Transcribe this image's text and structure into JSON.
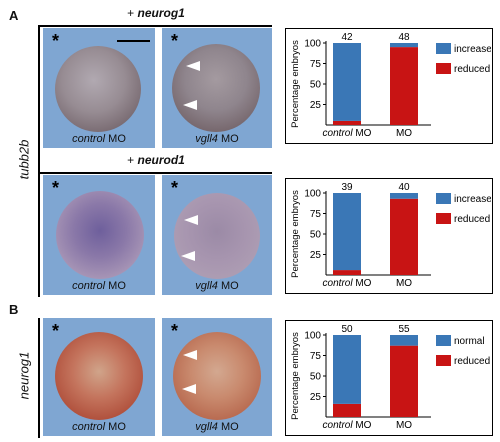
{
  "panels": {
    "a_letter": "A",
    "b_letter": "B"
  },
  "groups": {
    "top": {
      "prefix": "+ ",
      "gene": "neurog1"
    },
    "mid": {
      "prefix": "+ ",
      "gene": "neurod1"
    }
  },
  "row_labels": {
    "a": "tubb2b",
    "b": "neurog1"
  },
  "photos": {
    "star": "*",
    "control_label_italic": "control",
    "control_label_rest": " MO",
    "vgll4_label_italic": "vgll4",
    "vgll4_label_rest": " MO"
  },
  "colors": {
    "blue": "#3a77b6",
    "red": "#c81414",
    "photo_bg": "#7fa6d2"
  },
  "chart_data": [
    {
      "type": "bar",
      "stacked": true,
      "ylabel": "Percentage embryos",
      "yticks": [
        25,
        50,
        75,
        100
      ],
      "ylim": [
        0,
        100
      ],
      "categories": [
        {
          "italic": "control",
          "rest": " MO"
        },
        {
          "italic": "",
          "rest": "MO"
        }
      ],
      "counts": [
        "42",
        "48"
      ],
      "series": [
        {
          "name": "increased",
          "color": "#3a77b6",
          "values": [
            95,
            5
          ]
        },
        {
          "name": "reduced",
          "color": "#c81414",
          "values": [
            5,
            95
          ]
        }
      ]
    },
    {
      "type": "bar",
      "stacked": true,
      "ylabel": "Percentage embryos",
      "yticks": [
        25,
        50,
        75,
        100
      ],
      "ylim": [
        0,
        100
      ],
      "categories": [
        {
          "italic": "control",
          "rest": " MO"
        },
        {
          "italic": "",
          "rest": "MO"
        }
      ],
      "counts": [
        "39",
        "40"
      ],
      "series": [
        {
          "name": "increased",
          "color": "#3a77b6",
          "values": [
            94,
            7
          ]
        },
        {
          "name": "reduced",
          "color": "#c81414",
          "values": [
            6,
            93
          ]
        }
      ]
    },
    {
      "type": "bar",
      "stacked": true,
      "ylabel": "Percentage embryos",
      "yticks": [
        25,
        50,
        75,
        100
      ],
      "ylim": [
        0,
        100
      ],
      "categories": [
        {
          "italic": "control",
          "rest": " MO"
        },
        {
          "italic": "",
          "rest": "MO"
        }
      ],
      "counts": [
        "50",
        "55"
      ],
      "series": [
        {
          "name": "normal",
          "color": "#3a77b6",
          "values": [
            84,
            13
          ]
        },
        {
          "name": "reduced",
          "color": "#c81414",
          "values": [
            16,
            87
          ]
        }
      ]
    }
  ]
}
